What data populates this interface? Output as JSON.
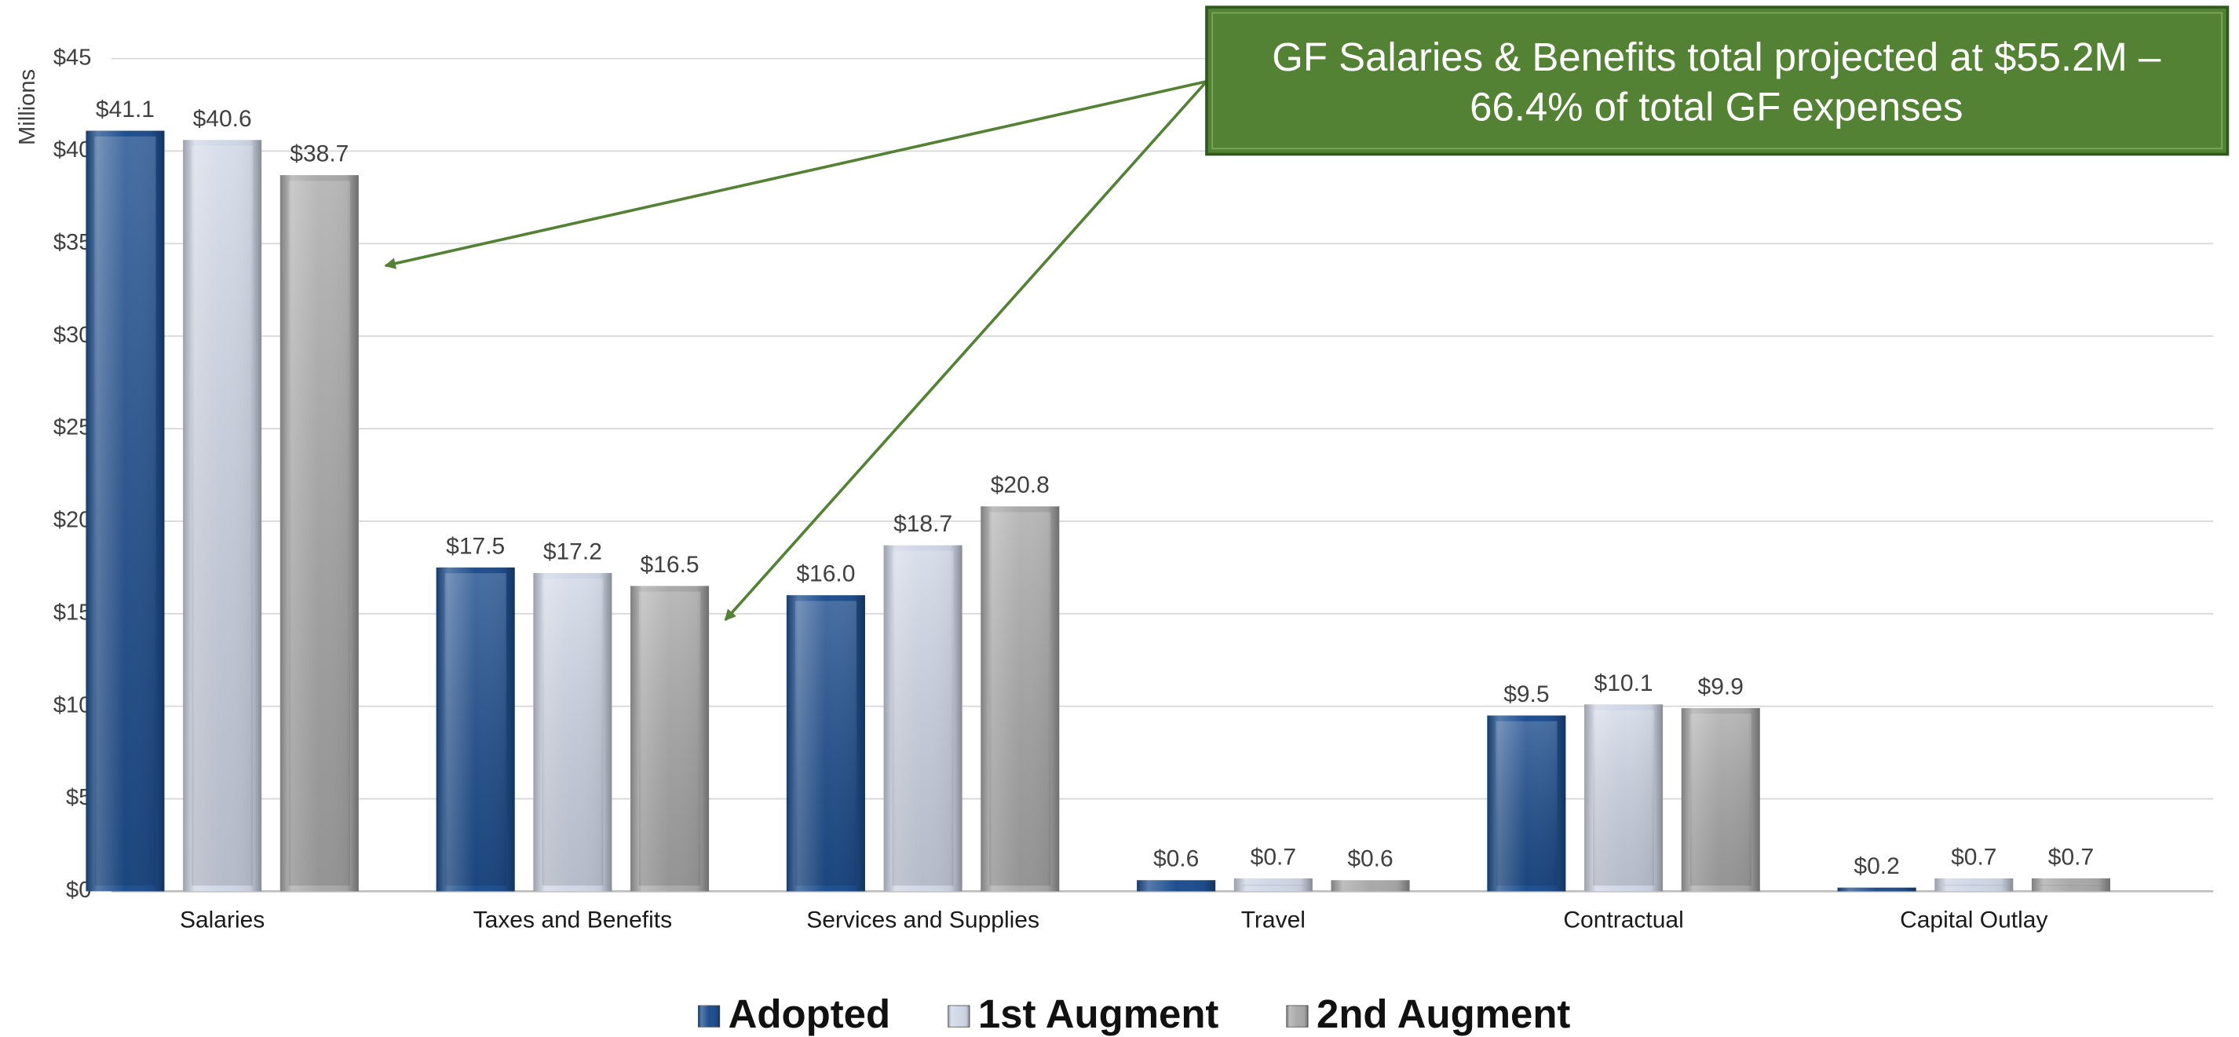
{
  "chart_data": {
    "type": "bar",
    "y_axis_label": "Millions",
    "categories": [
      "Salaries",
      "Taxes and Benefits",
      "Services and Supplies",
      "Travel",
      "Contractual",
      "Capital Outlay"
    ],
    "series": [
      {
        "name": "Adopted",
        "color": "#1f4f8f",
        "values": [
          41.1,
          17.5,
          16.0,
          0.6,
          9.5,
          0.2
        ],
        "value_labels": [
          "$41.1",
          "$17.5",
          "$16.0",
          "$0.6",
          "$9.5",
          "$0.2"
        ]
      },
      {
        "name": "1st Augment",
        "color": "#cfd6e5",
        "values": [
          40.6,
          17.2,
          18.7,
          0.7,
          10.1,
          0.7
        ],
        "value_labels": [
          "$40.6",
          "$17.2",
          "$18.7",
          "$0.7",
          "$10.1",
          "$0.7"
        ]
      },
      {
        "name": "2nd Augment",
        "color": "#a9a9a9",
        "values": [
          38.7,
          16.5,
          20.8,
          0.6,
          9.9,
          0.7
        ],
        "value_labels": [
          "$38.7",
          "$16.5",
          "$20.8",
          "$0.6",
          "$9.9",
          "$0.7"
        ]
      }
    ],
    "ylim": [
      0,
      45
    ],
    "yticks": [
      {
        "value": 0,
        "label": "$0"
      },
      {
        "value": 5,
        "label": "$5"
      },
      {
        "value": 10,
        "label": "$10"
      },
      {
        "value": 15,
        "label": "$15"
      },
      {
        "value": 20,
        "label": "$20"
      },
      {
        "value": 25,
        "label": "$25"
      },
      {
        "value": 30,
        "label": "$30"
      },
      {
        "value": 35,
        "label": "$35"
      },
      {
        "value": 40,
        "label": "$40"
      },
      {
        "value": 45,
        "label": "$45"
      }
    ],
    "grid": true,
    "legend": "bottom",
    "annotation": {
      "lines": [
        "GF Salaries & Benefits total projected at $55.2M –",
        "66.4% of total GF expenses"
      ]
    }
  }
}
